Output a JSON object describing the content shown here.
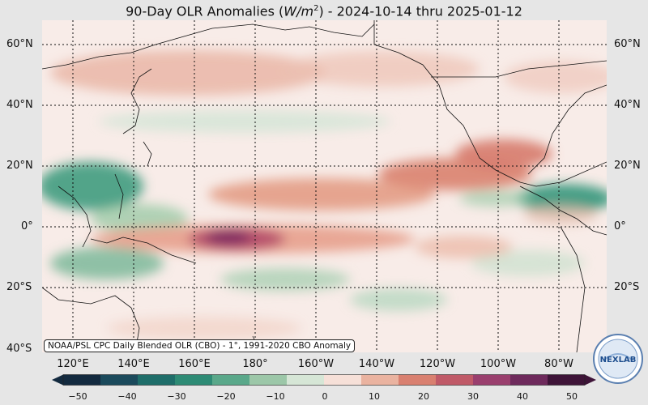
{
  "title_prefix": "90-Day OLR Anomalies (",
  "title_unit": "W/m",
  "title_unit_exp": "2",
  "title_suffix": ") - 2024-10-14 thru 2025-01-12",
  "lat_labels": [
    "60°N",
    "40°N",
    "20°N",
    "0°",
    "20°S",
    "40°S"
  ],
  "lon_labels": [
    "120°E",
    "140°E",
    "160°E",
    "180°",
    "160°W",
    "140°W",
    "120°W",
    "100°W",
    "80°W"
  ],
  "source_text": "NOAA/PSL CPC Daily Blended OLR (CBO) - 1°, 1991-2020 CBO Anomaly",
  "colorbar": {
    "ticks": [
      "−50",
      "−40",
      "−30",
      "−20",
      "−10",
      "0",
      "10",
      "20",
      "30",
      "40",
      "50"
    ],
    "negative_colors": [
      "#132a3f",
      "#1b4a5c",
      "#1f6e6a",
      "#2e8b75",
      "#5aa88a",
      "#9cc7a8",
      "#d6e6d6"
    ],
    "positive_colors": [
      "#f6e0d8",
      "#eab3a0",
      "#d98070",
      "#c05a68",
      "#9a3f6e",
      "#6e2a5c",
      "#3e1438"
    ]
  },
  "logo_text": "NEXLAB",
  "map_colors": {
    "background": "#f8ece8",
    "positive_anomaly": "#d9826f",
    "strong_positive": "#8a2f6e",
    "negative_anomaly": "#4a9c80"
  }
}
